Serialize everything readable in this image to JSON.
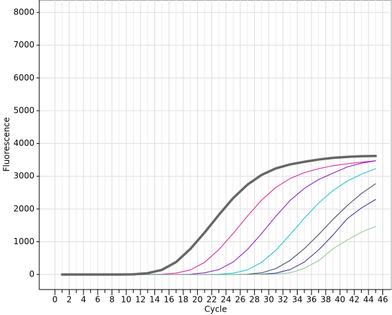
{
  "chart_data": {
    "type": "line",
    "x_label": "Cycle",
    "y_label": "Fluorescence",
    "x": [
      1,
      3,
      5,
      7,
      9,
      11,
      13,
      15,
      17,
      19,
      21,
      23,
      25,
      27,
      29,
      31,
      33,
      35,
      37,
      39,
      41,
      43,
      45
    ],
    "series": [
      {
        "color": "#e0209c",
        "values": [
          0,
          0,
          0,
          0,
          0,
          0,
          0,
          10,
          40,
          140,
          370,
          760,
          1250,
          1780,
          2270,
          2660,
          2930,
          3110,
          3230,
          3320,
          3380,
          3430,
          3470
        ]
      },
      {
        "color": "#8a1cc4",
        "values": [
          0,
          0,
          0,
          0,
          0,
          0,
          0,
          0,
          0,
          10,
          50,
          150,
          380,
          760,
          1250,
          1780,
          2260,
          2630,
          2900,
          3090,
          3280,
          3400,
          3470
        ]
      },
      {
        "color": "#1cc4d4",
        "values": [
          0,
          0,
          0,
          0,
          0,
          0,
          0,
          0,
          0,
          0,
          0,
          10,
          40,
          140,
          370,
          740,
          1220,
          1720,
          2180,
          2560,
          2850,
          3060,
          3230
        ]
      },
      {
        "color": "#3c4c5c",
        "values": [
          0,
          0,
          0,
          0,
          0,
          0,
          0,
          0,
          0,
          0,
          0,
          0,
          0,
          10,
          50,
          180,
          430,
          790,
          1220,
          1680,
          2100,
          2470,
          2770
        ]
      },
      {
        "color": "#4030a4",
        "values": [
          0,
          0,
          0,
          0,
          0,
          0,
          0,
          0,
          0,
          0,
          0,
          0,
          0,
          0,
          10,
          40,
          150,
          380,
          750,
          1200,
          1700,
          2030,
          2290
        ]
      },
      {
        "color": "#94c894",
        "values": [
          0,
          0,
          0,
          0,
          0,
          0,
          0,
          0,
          0,
          0,
          0,
          0,
          0,
          0,
          0,
          10,
          50,
          190,
          420,
          780,
          1050,
          1290,
          1470
        ]
      },
      {
        "color": "#666666",
        "values": [
          0,
          0,
          0,
          0,
          0,
          5,
          40,
          140,
          380,
          780,
          1280,
          1820,
          2330,
          2740,
          3040,
          3240,
          3360,
          3440,
          3510,
          3560,
          3590,
          3610,
          3620
        ]
      }
    ],
    "xlim": [
      -2.2,
      47.2
    ],
    "ylim": [
      -460,
      8380
    ],
    "xticks": [
      0,
      2,
      4,
      6,
      8,
      10,
      12,
      14,
      16,
      18,
      20,
      22,
      24,
      26,
      28,
      30,
      32,
      34,
      36,
      38,
      40,
      42,
      44,
      46
    ],
    "yticks": [
      0,
      1000,
      2000,
      3000,
      4000,
      5000,
      6000,
      7000,
      8000
    ],
    "grid": true
  }
}
